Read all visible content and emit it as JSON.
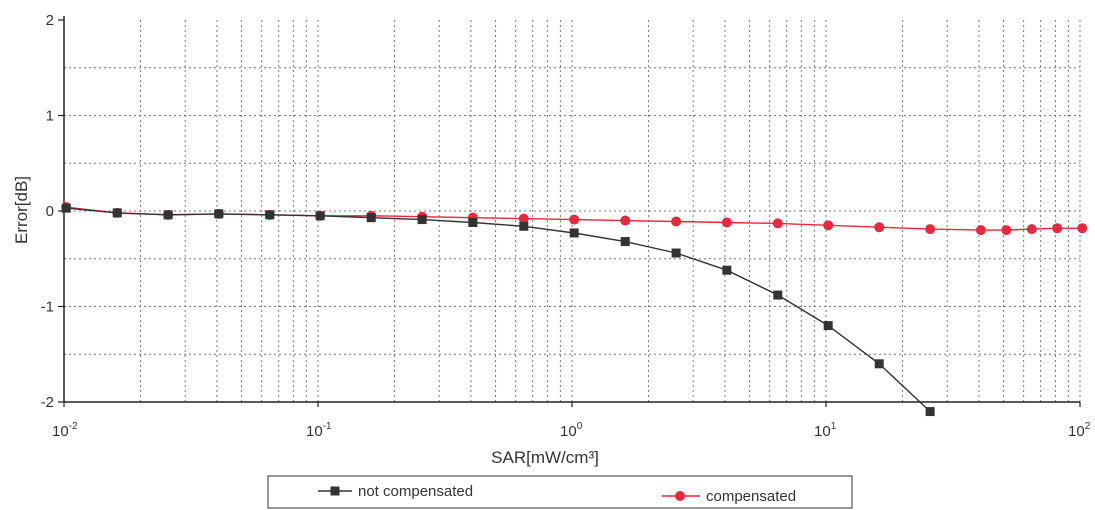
{
  "chart_data": {
    "type": "line",
    "xlabel": "SAR[mW/cm³]",
    "ylabel": "Error[dB]",
    "xscale": "log",
    "xlim": [
      0.01,
      100
    ],
    "ylim": [
      -2,
      2
    ],
    "x_ticks": [
      {
        "base": "10",
        "exp": "-2"
      },
      {
        "base": "10",
        "exp": "-1"
      },
      {
        "base": "10",
        "exp": "0"
      },
      {
        "base": "10",
        "exp": "1"
      },
      {
        "base": "10",
        "exp": "2"
      }
    ],
    "y_ticks": [
      "2",
      "1",
      "0",
      "-1",
      "-2"
    ],
    "grid": true,
    "legend_position": "bottom",
    "series": [
      {
        "name": "not compensated",
        "color": "#333333",
        "marker": "square",
        "x": [
          0.0102,
          0.0162,
          0.0257,
          0.0407,
          0.0646,
          0.102,
          0.162,
          0.257,
          0.407,
          0.646,
          1.02,
          1.62,
          2.57,
          4.07,
          6.46,
          10.2,
          16.2,
          25.7
        ],
        "y": [
          0.03,
          -0.02,
          -0.04,
          -0.03,
          -0.04,
          -0.05,
          -0.07,
          -0.09,
          -0.12,
          -0.16,
          -0.23,
          -0.32,
          -0.44,
          -0.62,
          -0.88,
          -1.2,
          -1.6,
          -2.1
        ]
      },
      {
        "name": "compensated",
        "color": "#e8283c",
        "marker": "circle",
        "x": [
          0.0102,
          0.0162,
          0.0257,
          0.0407,
          0.0646,
          0.102,
          0.162,
          0.257,
          0.407,
          0.646,
          1.02,
          1.62,
          2.57,
          4.07,
          6.46,
          10.2,
          16.2,
          25.7,
          40.7,
          51.3,
          64.6,
          81.3,
          102
        ],
        "y": [
          0.04,
          -0.02,
          -0.04,
          -0.03,
          -0.04,
          -0.05,
          -0.05,
          -0.06,
          -0.07,
          -0.08,
          -0.09,
          -0.1,
          -0.11,
          -0.12,
          -0.13,
          -0.15,
          -0.17,
          -0.19,
          -0.2,
          -0.2,
          -0.19,
          -0.18,
          -0.18
        ]
      }
    ]
  }
}
